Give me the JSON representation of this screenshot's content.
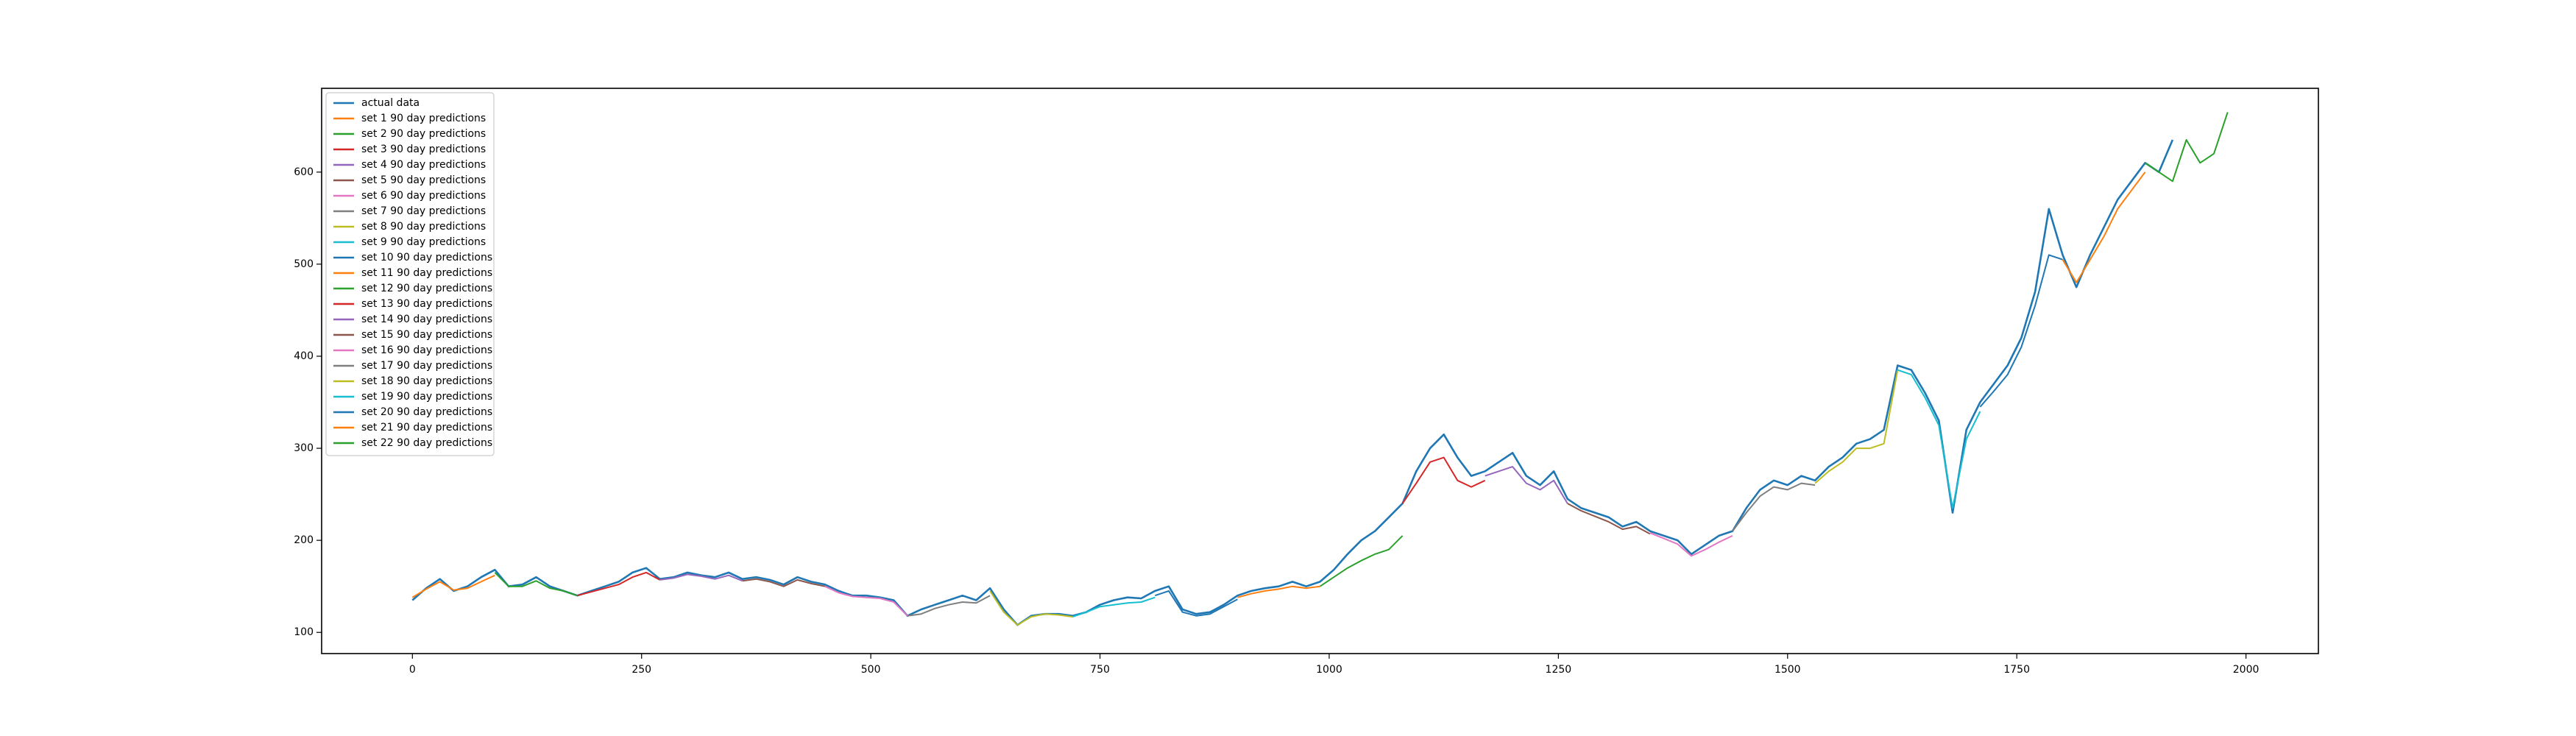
{
  "chart_data": {
    "type": "line",
    "legend": "upper left",
    "grid": false,
    "xlim": [
      -99,
      2079
    ],
    "ylim": [
      77,
      691
    ],
    "xticks": [
      0,
      250,
      500,
      750,
      1000,
      1250,
      1500,
      1750,
      2000
    ],
    "yticks": [
      100,
      200,
      300,
      400,
      500,
      600
    ],
    "series": [
      {
        "name": "actual data",
        "color": "#1f77b4",
        "x": [
          0,
          15,
          30,
          45,
          60,
          75,
          90,
          105,
          120,
          135,
          150,
          165,
          180,
          195,
          210,
          225,
          240,
          255,
          270,
          285,
          300,
          315,
          330,
          345,
          360,
          375,
          390,
          405,
          420,
          435,
          450,
          465,
          480,
          495,
          510,
          525,
          540,
          555,
          570,
          585,
          600,
          615,
          630,
          645,
          660,
          675,
          690,
          705,
          720,
          735,
          750,
          765,
          780,
          795,
          810,
          825,
          840,
          855,
          870,
          885,
          900,
          915,
          930,
          945,
          960,
          975,
          990,
          1005,
          1020,
          1035,
          1050,
          1065,
          1080,
          1095,
          1110,
          1125,
          1140,
          1155,
          1170,
          1185,
          1200,
          1215,
          1230,
          1245,
          1260,
          1275,
          1290,
          1305,
          1320,
          1335,
          1350,
          1365,
          1380,
          1395,
          1410,
          1425,
          1440,
          1455,
          1470,
          1485,
          1500,
          1515,
          1530,
          1545,
          1560,
          1575,
          1590,
          1605,
          1620,
          1635,
          1650,
          1665,
          1680,
          1695,
          1710,
          1725,
          1740,
          1755,
          1770,
          1785,
          1800,
          1815,
          1830,
          1845,
          1860,
          1875,
          1890,
          1905,
          1920
        ],
        "values": [
          135,
          148,
          158,
          145,
          150,
          160,
          168,
          150,
          152,
          160,
          150,
          145,
          140,
          145,
          150,
          155,
          165,
          170,
          158,
          160,
          165,
          162,
          160,
          165,
          158,
          160,
          157,
          152,
          160,
          155,
          152,
          145,
          140,
          140,
          138,
          135,
          118,
          125,
          130,
          135,
          140,
          135,
          148,
          125,
          108,
          118,
          120,
          120,
          118,
          122,
          130,
          135,
          138,
          137,
          145,
          150,
          125,
          120,
          122,
          130,
          140,
          145,
          148,
          150,
          155,
          150,
          155,
          168,
          185,
          200,
          210,
          225,
          240,
          275,
          300,
          315,
          290,
          270,
          275,
          285,
          295,
          270,
          260,
          275,
          245,
          235,
          230,
          225,
          215,
          220,
          210,
          205,
          200,
          185,
          195,
          205,
          210,
          235,
          255,
          265,
          260,
          270,
          265,
          280,
          290,
          305,
          310,
          320,
          390,
          385,
          360,
          330,
          230,
          320,
          350,
          370,
          390,
          420,
          470,
          560,
          510,
          475,
          510,
          540,
          570,
          590,
          610,
          600,
          635
        ]
      },
      {
        "name": "set 1 90 day predictions",
        "color": "#ff7f0e",
        "x": [
          0,
          15,
          30,
          45,
          60,
          75,
          90
        ],
        "values": [
          138,
          147,
          155,
          146,
          148,
          155,
          162
        ]
      },
      {
        "name": "set 2 90 day predictions",
        "color": "#2ca02c",
        "x": [
          90,
          105,
          120,
          135,
          150,
          165,
          180
        ],
        "values": [
          165,
          150,
          150,
          156,
          148,
          145,
          140
        ]
      },
      {
        "name": "set 3 90 day predictions",
        "color": "#d62728",
        "x": [
          180,
          195,
          210,
          225,
          240,
          255,
          270
        ],
        "values": [
          140,
          144,
          148,
          152,
          160,
          165,
          157
        ]
      },
      {
        "name": "set 4 90 day predictions",
        "color": "#9467bd",
        "x": [
          270,
          285,
          300,
          315,
          330,
          345,
          360
        ],
        "values": [
          157,
          159,
          163,
          161,
          158,
          162,
          156
        ]
      },
      {
        "name": "set 5 90 day predictions",
        "color": "#8c564b",
        "x": [
          360,
          375,
          390,
          405,
          420,
          435,
          450
        ],
        "values": [
          156,
          158,
          155,
          150,
          157,
          153,
          150
        ]
      },
      {
        "name": "set 6 90 day predictions",
        "color": "#e377c2",
        "x": [
          450,
          465,
          480,
          495,
          510,
          525,
          540
        ],
        "values": [
          150,
          143,
          139,
          138,
          137,
          133,
          118
        ]
      },
      {
        "name": "set 7 90 day predictions",
        "color": "#7f7f7f",
        "x": [
          540,
          555,
          570,
          585,
          600,
          615,
          630
        ],
        "values": [
          118,
          120,
          126,
          130,
          133,
          132,
          140
        ]
      },
      {
        "name": "set 8 90 day predictions",
        "color": "#bcbd22",
        "x": [
          630,
          645,
          660,
          675,
          690,
          705,
          720
        ],
        "values": [
          145,
          122,
          108,
          117,
          120,
          119,
          117
        ]
      },
      {
        "name": "set 9 90 day predictions",
        "color": "#17becf",
        "x": [
          720,
          735,
          750,
          765,
          780,
          795,
          810
        ],
        "values": [
          117,
          122,
          128,
          130,
          132,
          133,
          138
        ]
      },
      {
        "name": "set 10 90 day predictions",
        "color": "#1f77b4",
        "x": [
          810,
          825,
          840,
          855,
          870,
          885,
          900
        ],
        "values": [
          140,
          145,
          122,
          118,
          120,
          128,
          136
        ]
      },
      {
        "name": "set 11 90 day predictions",
        "color": "#ff7f0e",
        "x": [
          900,
          915,
          930,
          945,
          960,
          975,
          990
        ],
        "values": [
          138,
          142,
          145,
          147,
          150,
          148,
          150
        ]
      },
      {
        "name": "set 12 90 day predictions",
        "color": "#2ca02c",
        "x": [
          990,
          1005,
          1020,
          1035,
          1050,
          1065,
          1080
        ],
        "values": [
          150,
          160,
          170,
          178,
          185,
          190,
          205
        ]
      },
      {
        "name": "set 13 90 day predictions",
        "color": "#d62728",
        "x": [
          1080,
          1095,
          1110,
          1125,
          1140,
          1155,
          1170
        ],
        "values": [
          240,
          262,
          285,
          290,
          265,
          258,
          265
        ]
      },
      {
        "name": "set 14 90 day predictions",
        "color": "#9467bd",
        "x": [
          1170,
          1185,
          1200,
          1215,
          1230,
          1245,
          1260
        ],
        "values": [
          270,
          275,
          280,
          262,
          255,
          265,
          240
        ]
      },
      {
        "name": "set 15 90 day predictions",
        "color": "#8c564b",
        "x": [
          1260,
          1275,
          1290,
          1305,
          1320,
          1335,
          1350
        ],
        "values": [
          240,
          232,
          226,
          220,
          212,
          215,
          207
        ]
      },
      {
        "name": "set 16 90 day predictions",
        "color": "#e377c2",
        "x": [
          1350,
          1365,
          1380,
          1395,
          1410,
          1425,
          1440
        ],
        "values": [
          208,
          202,
          196,
          183,
          190,
          198,
          205
        ]
      },
      {
        "name": "set 17 90 day predictions",
        "color": "#7f7f7f",
        "x": [
          1440,
          1455,
          1470,
          1485,
          1500,
          1515,
          1530
        ],
        "values": [
          210,
          230,
          248,
          258,
          255,
          262,
          260
        ]
      },
      {
        "name": "set 18 90 day predictions",
        "color": "#bcbd22",
        "x": [
          1530,
          1545,
          1560,
          1575,
          1590,
          1605,
          1620
        ],
        "values": [
          262,
          275,
          285,
          300,
          300,
          305,
          385
        ]
      },
      {
        "name": "set 19 90 day predictions",
        "color": "#17becf",
        "x": [
          1620,
          1635,
          1650,
          1665,
          1680,
          1695,
          1710
        ],
        "values": [
          385,
          380,
          355,
          325,
          235,
          310,
          340
        ]
      },
      {
        "name": "set 20 90 day predictions",
        "color": "#1f77b4",
        "x": [
          1710,
          1725,
          1740,
          1755,
          1770,
          1785,
          1800
        ],
        "values": [
          345,
          362,
          380,
          410,
          455,
          510,
          505
        ]
      },
      {
        "name": "set 21 90 day predictions",
        "color": "#ff7f0e",
        "x": [
          1800,
          1815,
          1830,
          1845,
          1860,
          1875,
          1890
        ],
        "values": [
          505,
          480,
          505,
          530,
          560,
          580,
          600
        ]
      },
      {
        "name": "set 22 90 day predictions",
        "color": "#2ca02c",
        "x": [
          1890,
          1905,
          1920,
          1935,
          1950,
          1965,
          1980
        ],
        "values": [
          610,
          600,
          590,
          635,
          610,
          620,
          665
        ]
      }
    ]
  }
}
